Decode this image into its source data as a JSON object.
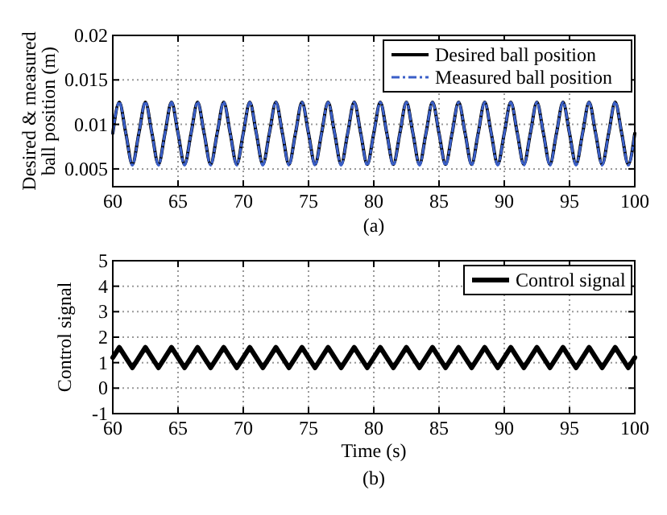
{
  "chart_data": [
    {
      "type": "line",
      "ylabel": "Desired & measured ball position (m)",
      "xlim": [
        60,
        100
      ],
      "xticks": [
        60,
        65,
        70,
        75,
        80,
        85,
        90,
        95,
        100
      ],
      "ylim": [
        0.003,
        0.02
      ],
      "yticks": [
        0.005,
        0.01,
        0.015,
        0.02
      ],
      "grid": true,
      "legend": "top right",
      "annotations": [
        "(a)"
      ],
      "x": [
        60,
        60.5,
        61,
        61.5,
        62,
        62.5,
        63,
        63.5,
        64,
        64.5,
        65,
        65.5,
        66,
        66.5,
        67,
        67.5,
        68,
        68.5,
        69,
        69.5,
        70,
        70.5,
        71,
        71.5,
        72,
        72.5,
        73,
        73.5,
        74,
        74.5,
        75,
        75.5,
        76,
        76.5,
        77,
        77.5,
        78,
        78.5,
        79,
        79.5,
        80,
        80.5,
        81,
        81.5,
        82,
        82.5,
        83,
        83.5,
        84,
        84.5,
        85,
        85.5,
        86,
        86.5,
        87,
        87.5,
        88,
        88.5,
        89,
        89.5,
        90,
        90.5,
        91,
        91.5,
        92,
        92.5,
        93,
        93.5,
        94,
        94.5,
        95,
        95.5,
        96,
        96.5,
        97,
        97.5,
        98,
        98.5,
        99,
        99.5,
        100
      ],
      "series": [
        {
          "name": "Desired ball position",
          "color": "#000000",
          "line_style": "solid",
          "values": [
            0.009,
            0.0125,
            0.009,
            0.0055,
            0.009,
            0.0125,
            0.009,
            0.0055,
            0.009,
            0.0125,
            0.009,
            0.0055,
            0.009,
            0.0125,
            0.009,
            0.0055,
            0.009,
            0.0125,
            0.009,
            0.0055,
            0.009,
            0.0125,
            0.009,
            0.0055,
            0.009,
            0.0125,
            0.009,
            0.0055,
            0.009,
            0.0125,
            0.009,
            0.0055,
            0.009,
            0.0125,
            0.009,
            0.0055,
            0.009,
            0.0125,
            0.009,
            0.0055,
            0.009,
            0.0125,
            0.009,
            0.0055,
            0.009,
            0.0125,
            0.009,
            0.0055,
            0.009,
            0.0125,
            0.009,
            0.0055,
            0.009,
            0.0125,
            0.009,
            0.0055,
            0.009,
            0.0125,
            0.009,
            0.0055,
            0.009,
            0.0125,
            0.009,
            0.0055,
            0.009,
            0.0125,
            0.009,
            0.0055,
            0.009,
            0.0125,
            0.009,
            0.0055,
            0.009,
            0.0125,
            0.009,
            0.0055,
            0.009,
            0.0125,
            0.009,
            0.0055,
            0.009
          ]
        },
        {
          "name": "Measured ball position",
          "color": "#3a5fc8",
          "line_style": "dashed",
          "values": [
            0.009,
            0.0125,
            0.009,
            0.0054,
            0.009,
            0.0125,
            0.009,
            0.0054,
            0.009,
            0.0125,
            0.009,
            0.0054,
            0.009,
            0.0125,
            0.009,
            0.0054,
            0.009,
            0.0125,
            0.009,
            0.0054,
            0.009,
            0.0125,
            0.009,
            0.0054,
            0.009,
            0.0125,
            0.009,
            0.0054,
            0.009,
            0.0125,
            0.009,
            0.0054,
            0.009,
            0.0125,
            0.009,
            0.0054,
            0.009,
            0.0125,
            0.009,
            0.0054,
            0.009,
            0.0125,
            0.009,
            0.0054,
            0.009,
            0.0125,
            0.009,
            0.0054,
            0.009,
            0.0125,
            0.009,
            0.0054,
            0.009,
            0.0125,
            0.009,
            0.0054,
            0.009,
            0.0125,
            0.009,
            0.0054,
            0.009,
            0.0125,
            0.009,
            0.0054,
            0.009,
            0.0125,
            0.009,
            0.0054,
            0.009,
            0.0125,
            0.009,
            0.0054,
            0.009,
            0.0125,
            0.009,
            0.0054,
            0.009,
            0.0125,
            0.009,
            0.0054,
            0.009
          ]
        }
      ]
    },
    {
      "type": "line",
      "xlabel": "Time (s)",
      "ylabel": "Control signal",
      "xlim": [
        60,
        100
      ],
      "xticks": [
        60,
        65,
        70,
        75,
        80,
        85,
        90,
        95,
        100
      ],
      "ylim": [
        -1,
        5
      ],
      "yticks": [
        -1,
        0,
        1,
        2,
        3,
        4,
        5
      ],
      "grid": true,
      "legend": "top right",
      "annotations": [
        "(b)"
      ],
      "x": [
        60,
        60.5,
        61,
        61.5,
        62,
        62.5,
        63,
        63.5,
        64,
        64.5,
        65,
        65.5,
        66,
        66.5,
        67,
        67.5,
        68,
        68.5,
        69,
        69.5,
        70,
        70.5,
        71,
        71.5,
        72,
        72.5,
        73,
        73.5,
        74,
        74.5,
        75,
        75.5,
        76,
        76.5,
        77,
        77.5,
        78,
        78.5,
        79,
        79.5,
        80,
        80.5,
        81,
        81.5,
        82,
        82.5,
        83,
        83.5,
        84,
        84.5,
        85,
        85.5,
        86,
        86.5,
        87,
        87.5,
        88,
        88.5,
        89,
        89.5,
        90,
        90.5,
        91,
        91.5,
        92,
        92.5,
        93,
        93.5,
        94,
        94.5,
        95,
        95.5,
        96,
        96.5,
        97,
        97.5,
        98,
        98.5,
        99,
        99.5,
        100
      ],
      "series": [
        {
          "name": "Control signal",
          "color": "#000000",
          "line_style": "solid",
          "values": [
            1.2,
            1.6,
            1.2,
            0.8,
            1.2,
            1.6,
            1.2,
            0.8,
            1.2,
            1.6,
            1.2,
            0.8,
            1.2,
            1.6,
            1.2,
            0.8,
            1.2,
            1.6,
            1.2,
            0.8,
            1.2,
            1.6,
            1.2,
            0.8,
            1.2,
            1.6,
            1.2,
            0.8,
            1.2,
            1.6,
            1.2,
            0.8,
            1.2,
            1.6,
            1.2,
            0.8,
            1.2,
            1.6,
            1.2,
            0.8,
            1.2,
            1.6,
            1.2,
            0.8,
            1.2,
            1.6,
            1.2,
            0.8,
            1.2,
            1.6,
            1.2,
            0.8,
            1.2,
            1.6,
            1.2,
            0.8,
            1.2,
            1.6,
            1.2,
            0.8,
            1.2,
            1.6,
            1.2,
            0.8,
            1.2,
            1.6,
            1.2,
            0.8,
            1.2,
            1.6,
            1.2,
            0.8,
            1.2,
            1.6,
            1.2,
            0.8,
            1.2,
            1.6,
            1.2,
            0.8,
            1.2
          ]
        }
      ]
    }
  ]
}
